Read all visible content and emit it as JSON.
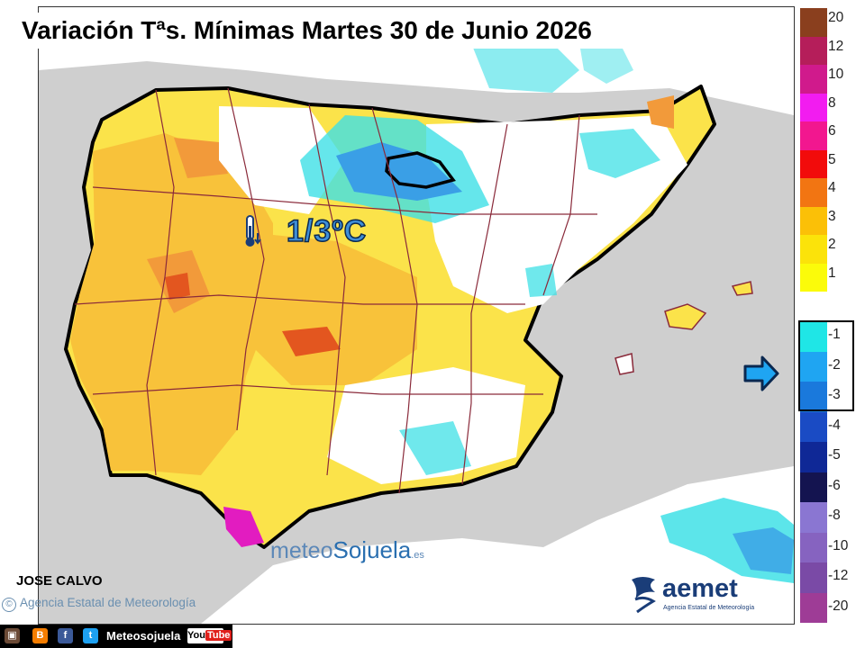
{
  "title": "Variación Tªs. Mínimas Martes 30 de Junio 2026",
  "highlight": {
    "value": "1/3ºC",
    "icon": "thermometer-down-icon"
  },
  "author": "JOSE CALVO",
  "agency": {
    "symbol": "©",
    "name": "Agencia Estatal de Meteorología"
  },
  "brand": {
    "part1": "meteo",
    "part2": "Sojuela",
    "suffix": ".es"
  },
  "logo": {
    "name": "aemet",
    "subtitle": "Agencia Estatal de Meteorología"
  },
  "social": {
    "handle": "Meteosojuela",
    "youtube_you": "You",
    "youtube_tube": "Tube",
    "icons": [
      "instagram-icon",
      "blogger-icon",
      "facebook-icon",
      "twitter-icon"
    ]
  },
  "legend": {
    "colors": {
      "20": "#8a3f1e",
      "12": "#b51e5a",
      "10": "#d01a8c",
      "8": "#f21cf0",
      "6": "#f2178f",
      "5": "#f20b0b",
      "4": "#f27512",
      "3": "#fbc007",
      "2": "#fbe30a",
      "1": "#fbfb0a",
      "-1": "#1fe6e6",
      "-2": "#1fa5f2",
      "-3": "#1a79dc",
      "-4": "#1a4bc4",
      "-5": "#0f2896",
      "-6": "#141450",
      "-8": "#8a76d2",
      "-10": "#8663c0",
      "-12": "#7a4aa6",
      "-20": "#9e3c96"
    },
    "labels_positive": [
      "20",
      "12",
      "10",
      "8",
      "6",
      "5",
      "4",
      "3",
      "2",
      "1"
    ],
    "labels_negative": [
      "-1",
      "-2",
      "-3",
      "-4",
      "-5",
      "-6",
      "-8",
      "-10",
      "-12",
      "-20"
    ]
  },
  "map_colors": {
    "sea": "#cfcfcf",
    "land": "#ffffff",
    "warm1": "#fbe34a",
    "warm2": "#f8c23a",
    "warm3": "#f29a3a",
    "warm4": "#e3561f",
    "hot": "#e21cc0",
    "cool1": "#3fe0e6",
    "cool2": "#3a9fe6",
    "border": "#000000",
    "province": "#8a2a3a"
  }
}
